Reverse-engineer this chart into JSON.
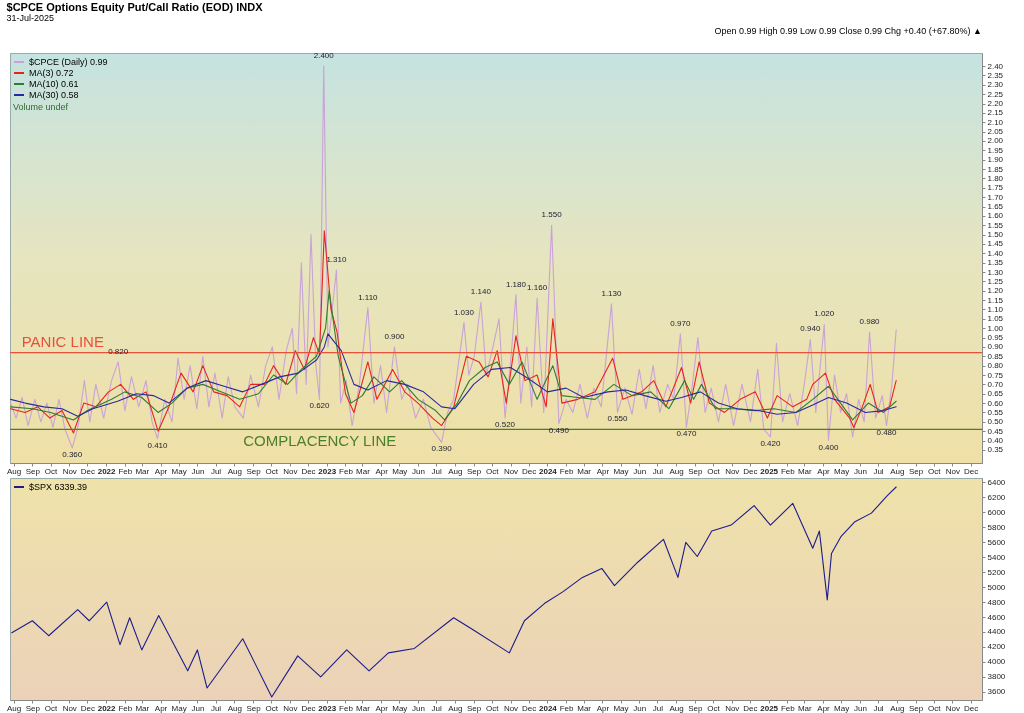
{
  "chart_data": [
    {
      "type": "line",
      "title": "$CPCE Options Equity Put/Call Ratio (EOD) INDX",
      "subtitle": "31-Jul-2025",
      "annotations": [
        "Open 0.99 High 0.99 Low 0.99 Close 0.99 Chg +0.40 (+67.80%) ▲",
        "Volume undef",
        {
          "text": "2.400",
          "x": "2022-12-27",
          "y": 2.4
        },
        {
          "text": "1.310",
          "x": "2023-01-17",
          "y": 1.31
        },
        {
          "text": "1.110",
          "x": "2023-03-10",
          "y": 1.11
        },
        {
          "text": "0.900",
          "x": "2023-04-23",
          "y": 0.9
        },
        {
          "text": "1.030",
          "x": "2023-08-16",
          "y": 1.03
        },
        {
          "text": "1.140",
          "x": "2023-09-13",
          "y": 1.14
        },
        {
          "text": "1.180",
          "x": "2023-11-10",
          "y": 1.18
        },
        {
          "text": "1.160",
          "x": "2023-12-15",
          "y": 1.16
        },
        {
          "text": "1.550",
          "x": "2024-01-08",
          "y": 1.55
        },
        {
          "text": "1.130",
          "x": "2024-04-16",
          "y": 1.13
        },
        {
          "text": "0.970",
          "x": "2024-08-08",
          "y": 0.97
        },
        {
          "text": "0.940",
          "x": "2025-03-11",
          "y": 0.94
        },
        {
          "text": "1.020",
          "x": "2025-04-03",
          "y": 1.02
        },
        {
          "text": "0.980",
          "x": "2025-06-17",
          "y": 0.98
        },
        {
          "text": "0.820",
          "x": "2022-01-21",
          "y": 0.82
        },
        {
          "text": "0.360",
          "x": "2021-11-06",
          "y": 0.36
        },
        {
          "text": "0.410",
          "x": "2022-03-27",
          "y": 0.41
        },
        {
          "text": "0.620",
          "x": "2022-12-20",
          "y": 0.62
        },
        {
          "text": "0.390",
          "x": "2023-07-10",
          "y": 0.39
        },
        {
          "text": "0.520",
          "x": "2023-10-23",
          "y": 0.52
        },
        {
          "text": "0.490",
          "x": "2024-01-20",
          "y": 0.49
        },
        {
          "text": "0.550",
          "x": "2024-04-26",
          "y": 0.55
        },
        {
          "text": "0.470",
          "x": "2024-08-18",
          "y": 0.47
        },
        {
          "text": "0.420",
          "x": "2025-01-04",
          "y": 0.42
        },
        {
          "text": "0.400",
          "x": "2025-04-10",
          "y": 0.4
        },
        {
          "text": "0.480",
          "x": "2025-07-15",
          "y": 0.48
        }
      ],
      "series": [
        {
          "name": "$CPCE (Daily) 0.99",
          "color": "#c9a3d6",
          "x": [
            "2021-07-27",
            "2021-08-05",
            "2021-08-15",
            "2021-08-25",
            "2021-09-05",
            "2021-09-15",
            "2021-09-25",
            "2021-10-05",
            "2021-10-15",
            "2021-10-25",
            "2021-11-06",
            "2021-11-16",
            "2021-11-26",
            "2021-12-05",
            "2021-12-15",
            "2021-12-28",
            "2022-01-10",
            "2022-01-21",
            "2022-02-01",
            "2022-02-12",
            "2022-02-24",
            "2022-03-08",
            "2022-03-18",
            "2022-03-27",
            "2022-04-08",
            "2022-04-20",
            "2022-04-30",
            "2022-05-10",
            "2022-05-20",
            "2022-05-31",
            "2022-06-10",
            "2022-06-20",
            "2022-06-30",
            "2022-07-12",
            "2022-07-22",
            "2022-08-02",
            "2022-08-16",
            "2022-08-28",
            "2022-09-10",
            "2022-09-22",
            "2022-10-03",
            "2022-10-14",
            "2022-10-26",
            "2022-11-05",
            "2022-11-12",
            "2022-11-20",
            "2022-11-28",
            "2022-12-06",
            "2022-12-14",
            "2022-12-20",
            "2022-12-27",
            "2023-01-03",
            "2023-01-10",
            "2023-01-17",
            "2023-01-24",
            "2023-02-02",
            "2023-02-12",
            "2023-02-24",
            "2023-03-10",
            "2023-03-20",
            "2023-03-31",
            "2023-04-10",
            "2023-04-23",
            "2023-05-05",
            "2023-05-15",
            "2023-05-28",
            "2023-06-10",
            "2023-06-22",
            "2023-07-10",
            "2023-07-20",
            "2023-07-30",
            "2023-08-16",
            "2023-08-24",
            "2023-09-02",
            "2023-09-13",
            "2023-09-22",
            "2023-10-03",
            "2023-10-13",
            "2023-10-23",
            "2023-11-02",
            "2023-11-10",
            "2023-11-18",
            "2023-11-28",
            "2023-12-06",
            "2023-12-15",
            "2023-12-26",
            "2024-01-08",
            "2024-01-20",
            "2024-02-01",
            "2024-02-12",
            "2024-02-24",
            "2024-03-07",
            "2024-03-18",
            "2024-03-30",
            "2024-04-16",
            "2024-04-26",
            "2024-05-08",
            "2024-05-20",
            "2024-06-01",
            "2024-06-12",
            "2024-06-24",
            "2024-07-05",
            "2024-07-18",
            "2024-07-28",
            "2024-08-08",
            "2024-08-18",
            "2024-08-28",
            "2024-09-06",
            "2024-09-18",
            "2024-09-28",
            "2024-10-10",
            "2024-10-22",
            "2024-11-04",
            "2024-11-18",
            "2024-12-02",
            "2024-12-14",
            "2024-12-24",
            "2025-01-04",
            "2025-01-14",
            "2025-01-24",
            "2025-02-05",
            "2025-02-18",
            "2025-03-01",
            "2025-03-11",
            "2025-03-20",
            "2025-04-03",
            "2025-04-10",
            "2025-04-20",
            "2025-04-30",
            "2025-05-10",
            "2025-05-20",
            "2025-05-30",
            "2025-06-08",
            "2025-06-17",
            "2025-06-27",
            "2025-07-08",
            "2025-07-15",
            "2025-07-24",
            "2025-07-31"
          ],
          "values": [
            0.6,
            0.52,
            0.63,
            0.48,
            0.62,
            0.5,
            0.6,
            0.47,
            0.62,
            0.46,
            0.36,
            0.48,
            0.72,
            0.5,
            0.7,
            0.52,
            0.72,
            0.82,
            0.56,
            0.74,
            0.58,
            0.72,
            0.5,
            0.41,
            0.62,
            0.5,
            0.84,
            0.62,
            0.8,
            0.57,
            0.85,
            0.58,
            0.76,
            0.52,
            0.74,
            0.58,
            0.52,
            0.75,
            0.58,
            0.8,
            0.9,
            0.62,
            0.88,
            1.0,
            0.65,
            1.35,
            0.7,
            1.5,
            0.8,
            0.62,
            2.4,
            0.9,
            1.1,
            1.31,
            0.6,
            0.72,
            0.48,
            0.7,
            1.11,
            0.6,
            0.8,
            0.55,
            0.9,
            0.62,
            0.7,
            0.52,
            0.62,
            0.47,
            0.39,
            0.55,
            0.62,
            1.03,
            0.75,
            0.85,
            1.14,
            0.75,
            0.9,
            1.05,
            0.52,
            0.85,
            1.18,
            0.6,
            0.9,
            0.58,
            1.16,
            0.55,
            1.55,
            0.49,
            0.62,
            0.55,
            0.7,
            0.52,
            0.68,
            0.58,
            1.13,
            0.55,
            0.68,
            0.54,
            0.78,
            0.57,
            0.8,
            0.55,
            0.7,
            0.62,
            0.97,
            0.47,
            0.7,
            0.95,
            0.55,
            0.68,
            0.5,
            0.7,
            0.48,
            0.7,
            0.5,
            0.78,
            0.46,
            0.42,
            0.92,
            0.5,
            0.65,
            0.48,
            0.7,
            0.94,
            0.55,
            1.02,
            0.4,
            0.75,
            0.55,
            0.65,
            0.42,
            0.62,
            0.5,
            0.98,
            0.52,
            0.64,
            0.48,
            0.7,
            0.99
          ]
        },
        {
          "name": "MA(3) 0.72",
          "color": "#e8231c",
          "x": [
            "2021-07-27",
            "2021-08-20",
            "2021-09-10",
            "2021-09-30",
            "2021-10-20",
            "2021-11-08",
            "2021-11-25",
            "2021-12-15",
            "2022-01-05",
            "2022-01-25",
            "2022-02-15",
            "2022-03-08",
            "2022-03-28",
            "2022-04-15",
            "2022-05-05",
            "2022-05-25",
            "2022-06-10",
            "2022-06-28",
            "2022-07-20",
            "2022-08-10",
            "2022-08-28",
            "2022-09-20",
            "2022-10-05",
            "2022-10-25",
            "2022-11-10",
            "2022-11-25",
            "2022-12-10",
            "2022-12-20",
            "2022-12-28",
            "2023-01-08",
            "2023-01-18",
            "2023-02-01",
            "2023-02-15",
            "2023-03-10",
            "2023-03-25",
            "2023-04-20",
            "2023-05-10",
            "2023-06-01",
            "2023-06-25",
            "2023-07-10",
            "2023-07-30",
            "2023-08-20",
            "2023-09-10",
            "2023-09-25",
            "2023-10-10",
            "2023-10-25",
            "2023-11-10",
            "2023-11-25",
            "2023-12-15",
            "2023-12-30",
            "2024-01-10",
            "2024-01-25",
            "2024-02-20",
            "2024-03-20",
            "2024-04-18",
            "2024-05-05",
            "2024-06-05",
            "2024-06-25",
            "2024-07-15",
            "2024-08-10",
            "2024-08-25",
            "2024-09-08",
            "2024-09-25",
            "2024-10-20",
            "2024-11-15",
            "2024-12-10",
            "2024-12-30",
            "2025-01-15",
            "2025-02-10",
            "2025-03-05",
            "2025-03-15",
            "2025-04-05",
            "2025-04-20",
            "2025-05-15",
            "2025-05-22",
            "2025-06-05",
            "2025-06-18",
            "2025-07-01",
            "2025-07-20",
            "2025-07-31"
          ],
          "values": [
            0.57,
            0.55,
            0.58,
            0.52,
            0.56,
            0.44,
            0.6,
            0.58,
            0.66,
            0.7,
            0.62,
            0.66,
            0.45,
            0.58,
            0.76,
            0.66,
            0.8,
            0.66,
            0.64,
            0.58,
            0.7,
            0.7,
            0.8,
            0.7,
            0.88,
            0.78,
            0.95,
            0.86,
            1.52,
            1.1,
            0.98,
            0.65,
            0.55,
            0.82,
            0.62,
            0.78,
            0.66,
            0.6,
            0.52,
            0.48,
            0.58,
            0.85,
            0.82,
            0.74,
            0.88,
            0.6,
            0.96,
            0.72,
            0.75,
            0.58,
            1.05,
            0.6,
            0.62,
            0.66,
            0.84,
            0.62,
            0.66,
            0.72,
            0.58,
            0.79,
            0.6,
            0.82,
            0.6,
            0.55,
            0.62,
            0.66,
            0.52,
            0.64,
            0.58,
            0.62,
            0.7,
            0.76,
            0.62,
            0.52,
            0.47,
            0.58,
            0.7,
            0.55,
            0.58,
            0.72
          ]
        },
        {
          "name": "MA(10) 0.61",
          "color": "#2e7d32",
          "x": [
            "2021-07-27",
            "2021-09-01",
            "2021-10-01",
            "2021-11-08",
            "2021-12-01",
            "2022-01-10",
            "2022-02-01",
            "2022-03-01",
            "2022-03-28",
            "2022-04-20",
            "2022-05-15",
            "2022-06-10",
            "2022-07-10",
            "2022-08-10",
            "2022-09-10",
            "2022-10-05",
            "2022-10-28",
            "2022-11-20",
            "2022-12-15",
            "2022-12-30",
            "2023-01-05",
            "2023-01-20",
            "2023-02-10",
            "2023-03-01",
            "2023-03-20",
            "2023-04-15",
            "2023-05-05",
            "2023-06-01",
            "2023-06-30",
            "2023-07-15",
            "2023-08-05",
            "2023-08-25",
            "2023-09-20",
            "2023-10-10",
            "2023-10-30",
            "2023-11-20",
            "2023-12-15",
            "2024-01-10",
            "2024-01-25",
            "2024-02-20",
            "2024-03-20",
            "2024-04-20",
            "2024-05-20",
            "2024-06-20",
            "2024-07-20",
            "2024-08-15",
            "2024-08-30",
            "2024-09-12",
            "2024-10-05",
            "2024-11-05",
            "2024-12-10",
            "2025-01-10",
            "2025-02-15",
            "2025-03-15",
            "2025-04-10",
            "2025-04-30",
            "2025-05-20",
            "2025-06-15",
            "2025-07-10",
            "2025-07-31"
          ],
          "values": [
            0.58,
            0.57,
            0.55,
            0.51,
            0.56,
            0.62,
            0.66,
            0.63,
            0.55,
            0.6,
            0.68,
            0.7,
            0.66,
            0.62,
            0.65,
            0.75,
            0.7,
            0.78,
            0.85,
            1.0,
            1.2,
            0.85,
            0.6,
            0.64,
            0.74,
            0.66,
            0.72,
            0.62,
            0.56,
            0.51,
            0.6,
            0.72,
            0.79,
            0.82,
            0.7,
            0.82,
            0.62,
            0.8,
            0.64,
            0.63,
            0.62,
            0.7,
            0.64,
            0.66,
            0.57,
            0.72,
            0.62,
            0.7,
            0.57,
            0.57,
            0.56,
            0.57,
            0.55,
            0.62,
            0.69,
            0.6,
            0.51,
            0.6,
            0.55,
            0.61
          ]
        },
        {
          "name": "MA(30) 0.58",
          "color": "#2a2a9c",
          "x": [
            "2021-07-27",
            "2021-08-20",
            "2021-09-20",
            "2021-10-20",
            "2021-11-15",
            "2021-12-10",
            "2022-01-20",
            "2022-02-20",
            "2022-03-20",
            "2022-04-15",
            "2022-05-15",
            "2022-06-15",
            "2022-07-15",
            "2022-08-15",
            "2022-09-15",
            "2022-10-15",
            "2022-11-15",
            "2022-12-15",
            "2022-12-28",
            "2023-01-03",
            "2023-01-25",
            "2023-02-15",
            "2023-03-10",
            "2023-04-10",
            "2023-05-10",
            "2023-06-10",
            "2023-07-10",
            "2023-08-01",
            "2023-09-01",
            "2023-10-01",
            "2023-11-01",
            "2023-12-01",
            "2024-01-01",
            "2024-02-01",
            "2024-03-01",
            "2024-04-10",
            "2024-05-10",
            "2024-06-10",
            "2024-07-15",
            "2024-08-10",
            "2024-09-10",
            "2024-10-10",
            "2024-11-10",
            "2024-12-15",
            "2025-01-15",
            "2025-02-15",
            "2025-03-15",
            "2025-04-10",
            "2025-05-10",
            "2025-06-10",
            "2025-07-10",
            "2025-07-31"
          ],
          "values": [
            0.62,
            0.6,
            0.58,
            0.57,
            0.53,
            0.57,
            0.61,
            0.65,
            0.64,
            0.6,
            0.68,
            0.72,
            0.69,
            0.66,
            0.7,
            0.74,
            0.76,
            0.83,
            0.9,
            0.97,
            0.88,
            0.7,
            0.67,
            0.72,
            0.7,
            0.66,
            0.58,
            0.57,
            0.7,
            0.78,
            0.79,
            0.73,
            0.66,
            0.68,
            0.63,
            0.66,
            0.67,
            0.64,
            0.61,
            0.63,
            0.66,
            0.6,
            0.57,
            0.56,
            0.54,
            0.55,
            0.59,
            0.63,
            0.6,
            0.55,
            0.56,
            0.58
          ]
        }
      ],
      "xlim": [
        "2021-07-26",
        "2025-12-20"
      ],
      "xticks": [
        {
          "value": "2021-08-01",
          "label": "Aug"
        },
        {
          "value": "2021-09-01",
          "label": "Sep"
        },
        {
          "value": "2021-10-01",
          "label": "Oct"
        },
        {
          "value": "2021-11-01",
          "label": "Nov"
        },
        {
          "value": "2021-12-01",
          "label": "Dec"
        },
        {
          "value": "2022-01-01",
          "label": "2022"
        },
        {
          "value": "2022-02-01",
          "label": "Feb"
        },
        {
          "value": "2022-03-01",
          "label": "Mar"
        },
        {
          "value": "2022-04-01",
          "label": "Apr"
        },
        {
          "value": "2022-05-01",
          "label": "May"
        },
        {
          "value": "2022-06-01",
          "label": "Jun"
        },
        {
          "value": "2022-07-01",
          "label": "Jul"
        },
        {
          "value": "2022-08-01",
          "label": "Aug"
        },
        {
          "value": "2022-09-01",
          "label": "Sep"
        },
        {
          "value": "2022-10-01",
          "label": "Oct"
        },
        {
          "value": "2022-11-01",
          "label": "Nov"
        },
        {
          "value": "2022-12-01",
          "label": "Dec"
        },
        {
          "value": "2023-01-01",
          "label": "2023"
        },
        {
          "value": "2023-02-01",
          "label": "Feb"
        },
        {
          "value": "2023-03-01",
          "label": "Mar"
        },
        {
          "value": "2023-04-01",
          "label": "Apr"
        },
        {
          "value": "2023-05-01",
          "label": "May"
        },
        {
          "value": "2023-06-01",
          "label": "Jun"
        },
        {
          "value": "2023-07-01",
          "label": "Jul"
        },
        {
          "value": "2023-08-01",
          "label": "Aug"
        },
        {
          "value": "2023-09-01",
          "label": "Sep"
        },
        {
          "value": "2023-10-01",
          "label": "Oct"
        },
        {
          "value": "2023-11-01",
          "label": "Nov"
        },
        {
          "value": "2023-12-01",
          "label": "Dec"
        },
        {
          "value": "2024-01-01",
          "label": "2024"
        },
        {
          "value": "2024-02-01",
          "label": "Feb"
        },
        {
          "value": "2024-03-01",
          "label": "Mar"
        },
        {
          "value": "2024-04-01",
          "label": "Apr"
        },
        {
          "value": "2024-05-01",
          "label": "May"
        },
        {
          "value": "2024-06-01",
          "label": "Jun"
        },
        {
          "value": "2024-07-01",
          "label": "Jul"
        },
        {
          "value": "2024-08-01",
          "label": "Aug"
        },
        {
          "value": "2024-09-01",
          "label": "Sep"
        },
        {
          "value": "2024-10-01",
          "label": "Oct"
        },
        {
          "value": "2024-11-01",
          "label": "Nov"
        },
        {
          "value": "2024-12-01",
          "label": "Dec"
        },
        {
          "value": "2025-01-01",
          "label": "2025"
        },
        {
          "value": "2025-02-01",
          "label": "Feb"
        },
        {
          "value": "2025-03-01",
          "label": "Mar"
        },
        {
          "value": "2025-04-01",
          "label": "Apr"
        },
        {
          "value": "2025-05-01",
          "label": "May"
        },
        {
          "value": "2025-06-01",
          "label": "Jun"
        },
        {
          "value": "2025-07-01",
          "label": "Jul"
        },
        {
          "value": "2025-08-01",
          "label": "Aug"
        },
        {
          "value": "2025-09-01",
          "label": "Sep"
        },
        {
          "value": "2025-10-01",
          "label": "Oct"
        },
        {
          "value": "2025-11-01",
          "label": "Nov"
        },
        {
          "value": "2025-12-01",
          "label": "Dec"
        }
      ],
      "ylim": [
        0.28,
        2.47
      ],
      "yticks": [
        0.35,
        {
          "value": 0.4,
          "label": "0.40"
        },
        0.45,
        {
          "value": 0.5,
          "label": "0.50"
        },
        0.55,
        {
          "value": 0.6,
          "label": "0.60"
        },
        0.65,
        {
          "value": 0.7,
          "label": "0.70"
        },
        0.75,
        {
          "value": 0.8,
          "label": "0.80"
        },
        0.85,
        {
          "value": 0.9,
          "label": "0.90"
        },
        0.95,
        {
          "value": 1,
          "label": "1.00"
        },
        1.05,
        {
          "value": 1.1,
          "label": "1.10"
        },
        1.15,
        {
          "value": 1.2,
          "label": "1.20"
        },
        1.25,
        {
          "value": 1.3,
          "label": "1.30"
        },
        1.35,
        {
          "value": 1.4,
          "label": "1.40"
        },
        1.45,
        {
          "value": 1.5,
          "label": "1.50"
        },
        1.55,
        {
          "value": 1.6,
          "label": "1.60"
        },
        1.65,
        {
          "value": 1.7,
          "label": "1.70"
        },
        1.75,
        {
          "value": 1.8,
          "label": "1.80"
        },
        1.85,
        {
          "value": 1.9,
          "label": "1.90"
        },
        1.95,
        {
          "value": 2,
          "label": "2.00"
        },
        2.05,
        {
          "value": 2.1,
          "label": "2.10"
        },
        2.15,
        {
          "value": 2.2,
          "label": "2.20"
        },
        2.25,
        {
          "value": 2.3,
          "label": "2.30"
        },
        2.35,
        {
          "value": 2.4,
          "label": "2.40"
        }
      ],
      "ref_lines": [
        {
          "axis": "y",
          "value": 0.87,
          "label": "PANIC LINE",
          "color": "#e8503a"
        },
        {
          "axis": "y",
          "value": 0.46,
          "label": "COMPLACENCY LINE",
          "color": "#4a7f2a"
        }
      ],
      "legend": "top left"
    },
    {
      "type": "line",
      "series": [
        {
          "name": "$SPX 6339.39",
          "color": "#1c1c8a",
          "x": [
            "2021-07-29",
            "2021-09-01",
            "2021-09-28",
            "2021-11-15",
            "2021-12-04",
            "2022-01-02",
            "2022-01-24",
            "2022-02-09",
            "2022-03-01",
            "2022-03-29",
            "2022-05-16",
            "2022-06-01",
            "2022-06-17",
            "2022-08-15",
            "2022-10-02",
            "2022-11-14",
            "2022-12-22",
            "2023-02-03",
            "2023-03-12",
            "2023-04-13",
            "2023-05-26",
            "2023-07-30",
            "2023-08-31",
            "2023-10-30",
            "2023-11-24",
            "2023-12-27",
            "2024-01-27",
            "2024-02-28",
            "2024-03-31",
            "2024-04-21",
            "2024-05-29",
            "2024-07-11",
            "2024-08-04",
            "2024-08-17",
            "2024-09-05",
            "2024-09-29",
            "2024-10-31",
            "2024-12-08",
            "2025-01-04",
            "2025-02-10",
            "2025-03-15",
            "2025-03-26",
            "2025-04-08",
            "2025-04-15",
            "2025-05-01",
            "2025-05-23",
            "2025-06-20",
            "2025-07-16",
            "2025-07-31"
          ],
          "values": [
            4390,
            4550,
            4350,
            4700,
            4550,
            4800,
            4230,
            4590,
            4160,
            4620,
            3880,
            4160,
            3650,
            4310,
            3530,
            4080,
            3800,
            4160,
            3880,
            4120,
            4180,
            4590,
            4430,
            4120,
            4550,
            4780,
            4940,
            5130,
            5250,
            5020,
            5330,
            5640,
            5130,
            5600,
            5410,
            5750,
            5830,
            6090,
            5830,
            6120,
            5520,
            5750,
            4830,
            5450,
            5680,
            5870,
            5990,
            6220,
            6339.39
          ]
        }
      ],
      "xlim": [
        "2021-07-26",
        "2025-12-20"
      ],
      "xticks": [
        {
          "value": "2021-08-01",
          "label": "Aug"
        },
        {
          "value": "2021-09-01",
          "label": "Sep"
        },
        {
          "value": "2021-10-01",
          "label": "Oct"
        },
        {
          "value": "2021-11-01",
          "label": "Nov"
        },
        {
          "value": "2021-12-01",
          "label": "Dec"
        },
        {
          "value": "2022-01-01",
          "label": "2022"
        },
        {
          "value": "2022-02-01",
          "label": "Feb"
        },
        {
          "value": "2022-03-01",
          "label": "Mar"
        },
        {
          "value": "2022-04-01",
          "label": "Apr"
        },
        {
          "value": "2022-05-01",
          "label": "May"
        },
        {
          "value": "2022-06-01",
          "label": "Jun"
        },
        {
          "value": "2022-07-01",
          "label": "Jul"
        },
        {
          "value": "2022-08-01",
          "label": "Aug"
        },
        {
          "value": "2022-09-01",
          "label": "Sep"
        },
        {
          "value": "2022-10-01",
          "label": "Oct"
        },
        {
          "value": "2022-11-01",
          "label": "Nov"
        },
        {
          "value": "2022-12-01",
          "label": "Dec"
        },
        {
          "value": "2023-01-01",
          "label": "2023"
        },
        {
          "value": "2023-02-01",
          "label": "Feb"
        },
        {
          "value": "2023-03-01",
          "label": "Mar"
        },
        {
          "value": "2023-04-01",
          "label": "Apr"
        },
        {
          "value": "2023-05-01",
          "label": "May"
        },
        {
          "value": "2023-06-01",
          "label": "Jun"
        },
        {
          "value": "2023-07-01",
          "label": "Jul"
        },
        {
          "value": "2023-08-01",
          "label": "Aug"
        },
        {
          "value": "2023-09-01",
          "label": "Sep"
        },
        {
          "value": "2023-10-01",
          "label": "Oct"
        },
        {
          "value": "2023-11-01",
          "label": "Nov"
        },
        {
          "value": "2023-12-01",
          "label": "Dec"
        },
        {
          "value": "2024-01-01",
          "label": "2024"
        },
        {
          "value": "2024-02-01",
          "label": "Feb"
        },
        {
          "value": "2024-03-01",
          "label": "Mar"
        },
        {
          "value": "2024-04-01",
          "label": "Apr"
        },
        {
          "value": "2024-05-01",
          "label": "May"
        },
        {
          "value": "2024-06-01",
          "label": "Jun"
        },
        {
          "value": "2024-07-01",
          "label": "Jul"
        },
        {
          "value": "2024-08-01",
          "label": "Aug"
        },
        {
          "value": "2024-09-01",
          "label": "Sep"
        },
        {
          "value": "2024-10-01",
          "label": "Oct"
        },
        {
          "value": "2024-11-01",
          "label": "Nov"
        },
        {
          "value": "2024-12-01",
          "label": "Dec"
        },
        {
          "value": "2025-01-01",
          "label": "2025"
        },
        {
          "value": "2025-02-01",
          "label": "Feb"
        },
        {
          "value": "2025-03-01",
          "label": "Mar"
        },
        {
          "value": "2025-04-01",
          "label": "Apr"
        },
        {
          "value": "2025-05-01",
          "label": "May"
        },
        {
          "value": "2025-06-01",
          "label": "Jun"
        },
        {
          "value": "2025-07-01",
          "label": "Jul"
        },
        {
          "value": "2025-08-01",
          "label": "Aug"
        },
        {
          "value": "2025-09-01",
          "label": "Sep"
        },
        {
          "value": "2025-10-01",
          "label": "Oct"
        },
        {
          "value": "2025-11-01",
          "label": "Nov"
        },
        {
          "value": "2025-12-01",
          "label": "Dec"
        }
      ],
      "ylim": [
        3490,
        6460
      ],
      "yticks": [
        3600,
        3800,
        4000,
        4200,
        4400,
        4600,
        4800,
        5000,
        5200,
        5400,
        5600,
        5800,
        6000,
        6200,
        6400
      ],
      "legend": "top left"
    }
  ]
}
